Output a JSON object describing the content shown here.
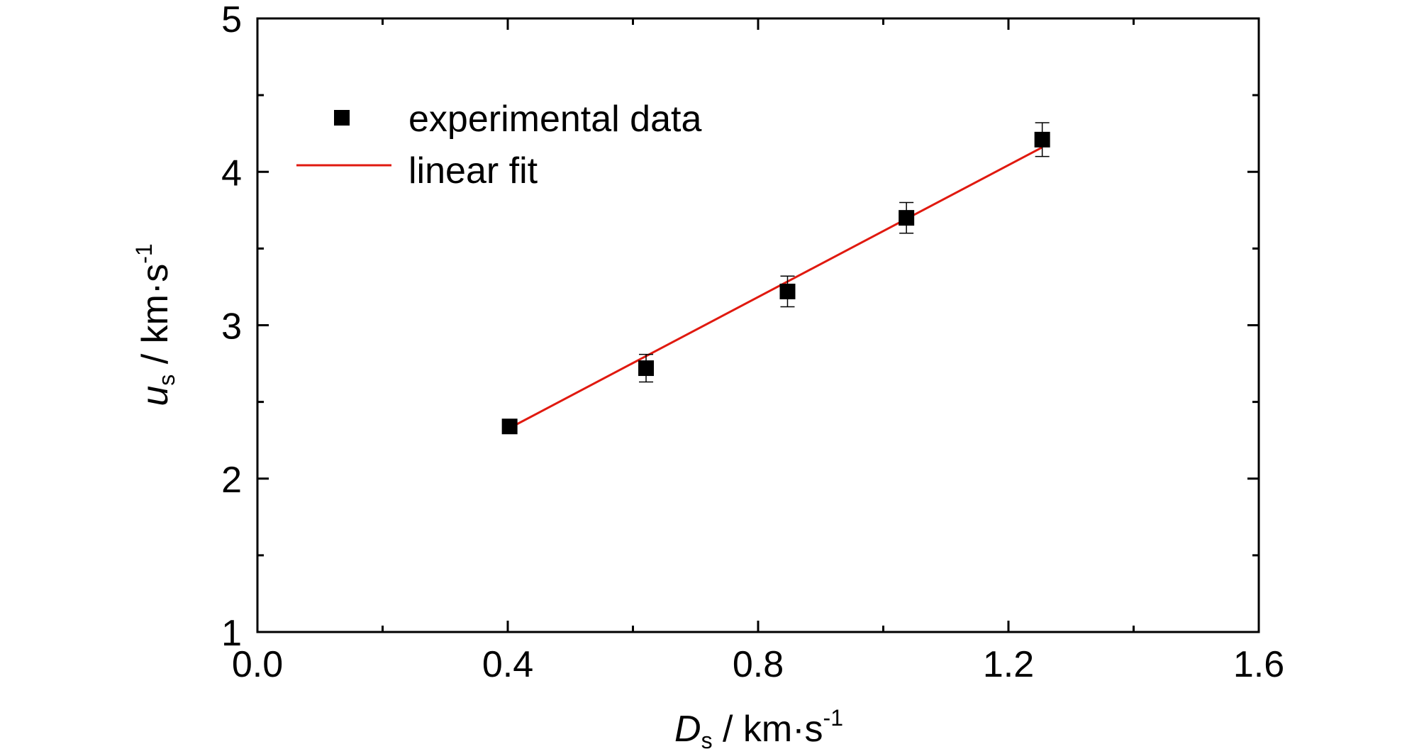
{
  "chart_data": {
    "type": "scatter",
    "xlabel": {
      "var": "D",
      "sub": "s",
      "unit": " / km·s",
      "sup": "-1"
    },
    "ylabel": {
      "var": "u",
      "sub": "s",
      "unit": " / km·s",
      "sup": "-1"
    },
    "xlim": [
      0.0,
      1.6
    ],
    "ylim": [
      1,
      5
    ],
    "xticks": [
      0.0,
      0.4,
      0.8,
      1.2,
      1.6
    ],
    "xtick_labels": [
      "0.0",
      "0.4",
      "0.8",
      "1.2",
      "1.6"
    ],
    "yticks": [
      1,
      2,
      3,
      4,
      5
    ],
    "ytick_labels": [
      "1",
      "2",
      "3",
      "4",
      "5"
    ],
    "grid": false,
    "legend_position": "top-left",
    "series": [
      {
        "name": "experimental data",
        "kind": "scatter",
        "marker": "square",
        "color": "#000000",
        "x": [
          0.403,
          0.621,
          0.847,
          1.037,
          1.254
        ],
        "y": [
          2.34,
          2.72,
          3.22,
          3.7,
          4.21
        ],
        "yerr": [
          0.0,
          0.09,
          0.1,
          0.1,
          0.11
        ]
      },
      {
        "name": "linear fit",
        "kind": "line",
        "color": "#e0190f",
        "x": [
          0.403,
          1.254
        ],
        "y": [
          2.33,
          4.16
        ]
      }
    ]
  }
}
